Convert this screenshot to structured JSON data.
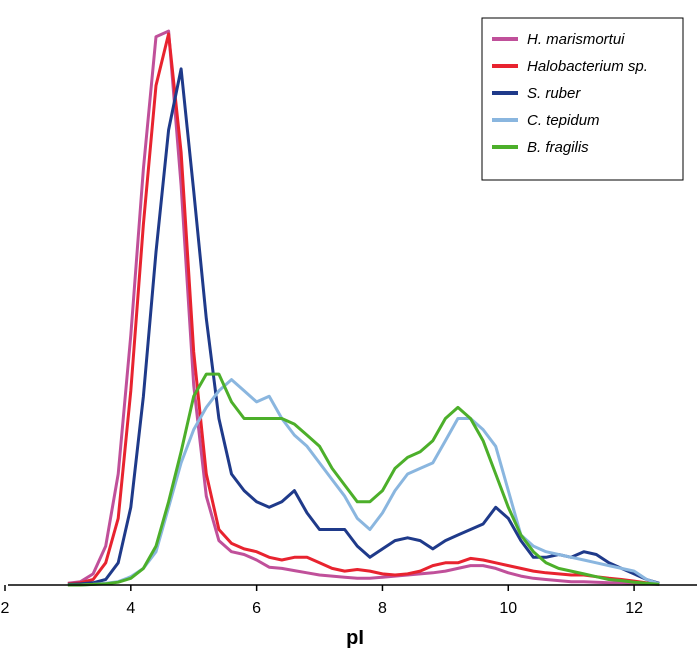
{
  "chart_data": {
    "type": "line",
    "title": "",
    "xlabel": "pI",
    "ylabel": "",
    "xlim": [
      2,
      13
    ],
    "ylim": [
      0,
      1.0
    ],
    "xticks": [
      2,
      4,
      6,
      8,
      10,
      12
    ],
    "legend_position": "top-right",
    "series": [
      {
        "name": "H. marismortui",
        "color": "#c0509a",
        "x": [
          3.0,
          3.2,
          3.4,
          3.6,
          3.8,
          4.0,
          4.2,
          4.4,
          4.6,
          4.8,
          5.0,
          5.2,
          5.4,
          5.6,
          5.8,
          6.0,
          6.2,
          6.4,
          6.6,
          6.8,
          7.0,
          7.2,
          7.4,
          7.6,
          7.8,
          8.0,
          8.2,
          8.4,
          8.6,
          8.8,
          9.0,
          9.2,
          9.4,
          9.6,
          9.8,
          10.0,
          10.2,
          10.4,
          10.6,
          10.8,
          11.0,
          11.2,
          11.4,
          11.6,
          11.8,
          12.0,
          12.2,
          12.4
        ],
        "values": [
          0.003,
          0.006,
          0.02,
          0.07,
          0.2,
          0.45,
          0.75,
          0.988,
          0.998,
          0.72,
          0.36,
          0.16,
          0.08,
          0.06,
          0.055,
          0.045,
          0.032,
          0.03,
          0.026,
          0.022,
          0.018,
          0.016,
          0.014,
          0.012,
          0.012,
          0.014,
          0.016,
          0.018,
          0.02,
          0.022,
          0.025,
          0.03,
          0.035,
          0.035,
          0.03,
          0.022,
          0.016,
          0.012,
          0.01,
          0.008,
          0.006,
          0.006,
          0.005,
          0.004,
          0.004,
          0.003,
          0.002,
          0.001
        ]
      },
      {
        "name": "Halobacterium sp.",
        "color": "#e8232f",
        "x": [
          3.0,
          3.2,
          3.4,
          3.6,
          3.8,
          4.0,
          4.2,
          4.4,
          4.6,
          4.8,
          5.0,
          5.2,
          5.4,
          5.6,
          5.8,
          6.0,
          6.2,
          6.4,
          6.6,
          6.8,
          7.0,
          7.2,
          7.4,
          7.6,
          7.8,
          8.0,
          8.2,
          8.4,
          8.6,
          8.8,
          9.0,
          9.2,
          9.4,
          9.6,
          9.8,
          10.0,
          10.2,
          10.4,
          10.6,
          10.8,
          11.0,
          11.2,
          11.4,
          11.6,
          11.8,
          12.0,
          12.2,
          12.4
        ],
        "values": [
          0.002,
          0.004,
          0.01,
          0.04,
          0.12,
          0.35,
          0.65,
          0.9,
          0.993,
          0.78,
          0.42,
          0.2,
          0.1,
          0.075,
          0.065,
          0.06,
          0.05,
          0.045,
          0.05,
          0.05,
          0.04,
          0.03,
          0.025,
          0.028,
          0.025,
          0.02,
          0.018,
          0.02,
          0.025,
          0.035,
          0.04,
          0.04,
          0.048,
          0.045,
          0.04,
          0.035,
          0.03,
          0.025,
          0.022,
          0.02,
          0.018,
          0.018,
          0.015,
          0.012,
          0.01,
          0.007,
          0.004,
          0.002
        ]
      },
      {
        "name": "S. ruber",
        "color": "#1f3a8a",
        "x": [
          3.0,
          3.2,
          3.4,
          3.6,
          3.8,
          4.0,
          4.2,
          4.4,
          4.6,
          4.8,
          5.0,
          5.2,
          5.4,
          5.6,
          5.8,
          6.0,
          6.2,
          6.4,
          6.6,
          6.8,
          7.0,
          7.2,
          7.4,
          7.6,
          7.8,
          8.0,
          8.2,
          8.4,
          8.6,
          8.8,
          9.0,
          9.2,
          9.4,
          9.6,
          9.8,
          10.0,
          10.2,
          10.4,
          10.6,
          10.8,
          11.0,
          11.2,
          11.4,
          11.6,
          11.8,
          12.0,
          12.2,
          12.4
        ],
        "values": [
          0.001,
          0.002,
          0.004,
          0.01,
          0.04,
          0.14,
          0.34,
          0.6,
          0.82,
          0.93,
          0.71,
          0.48,
          0.3,
          0.2,
          0.17,
          0.15,
          0.14,
          0.15,
          0.17,
          0.13,
          0.1,
          0.1,
          0.1,
          0.07,
          0.05,
          0.065,
          0.08,
          0.085,
          0.08,
          0.065,
          0.08,
          0.09,
          0.1,
          0.11,
          0.14,
          0.12,
          0.08,
          0.05,
          0.05,
          0.055,
          0.05,
          0.06,
          0.055,
          0.04,
          0.03,
          0.02,
          0.01,
          0.003
        ]
      },
      {
        "name": "C. tepidum",
        "color": "#8ab6df",
        "x": [
          3.0,
          3.2,
          3.4,
          3.6,
          3.8,
          4.0,
          4.2,
          4.4,
          4.6,
          4.8,
          5.0,
          5.2,
          5.4,
          5.6,
          5.8,
          6.0,
          6.2,
          6.4,
          6.6,
          6.8,
          7.0,
          7.2,
          7.4,
          7.6,
          7.8,
          8.0,
          8.2,
          8.4,
          8.6,
          8.8,
          9.0,
          9.2,
          9.4,
          9.6,
          9.8,
          10.0,
          10.2,
          10.4,
          10.6,
          10.8,
          11.0,
          11.2,
          11.4,
          11.6,
          11.8,
          12.0,
          12.2,
          12.4
        ],
        "values": [
          0.0,
          0.0,
          0.001,
          0.003,
          0.006,
          0.015,
          0.03,
          0.06,
          0.14,
          0.22,
          0.28,
          0.32,
          0.35,
          0.37,
          0.35,
          0.33,
          0.34,
          0.3,
          0.27,
          0.25,
          0.22,
          0.19,
          0.16,
          0.12,
          0.1,
          0.13,
          0.17,
          0.2,
          0.21,
          0.22,
          0.26,
          0.3,
          0.3,
          0.28,
          0.25,
          0.17,
          0.09,
          0.07,
          0.06,
          0.055,
          0.05,
          0.045,
          0.04,
          0.035,
          0.03,
          0.025,
          0.01,
          0.002
        ]
      },
      {
        "name": "B. fragilis",
        "color": "#4caf2a",
        "x": [
          3.0,
          3.2,
          3.4,
          3.6,
          3.8,
          4.0,
          4.2,
          4.4,
          4.6,
          4.8,
          5.0,
          5.2,
          5.4,
          5.6,
          5.8,
          6.0,
          6.2,
          6.4,
          6.6,
          6.8,
          7.0,
          7.2,
          7.4,
          7.6,
          7.8,
          8.0,
          8.2,
          8.4,
          8.6,
          8.8,
          9.0,
          9.2,
          9.4,
          9.6,
          9.8,
          10.0,
          10.2,
          10.4,
          10.6,
          10.8,
          11.0,
          11.2,
          11.4,
          11.6,
          11.8,
          12.0,
          12.2,
          12.4
        ],
        "values": [
          0.0,
          0.0,
          0.001,
          0.002,
          0.005,
          0.012,
          0.03,
          0.07,
          0.15,
          0.24,
          0.34,
          0.38,
          0.38,
          0.33,
          0.3,
          0.3,
          0.3,
          0.3,
          0.29,
          0.27,
          0.25,
          0.21,
          0.18,
          0.15,
          0.15,
          0.17,
          0.21,
          0.23,
          0.24,
          0.26,
          0.3,
          0.32,
          0.3,
          0.26,
          0.2,
          0.14,
          0.09,
          0.06,
          0.04,
          0.03,
          0.025,
          0.02,
          0.015,
          0.01,
          0.008,
          0.005,
          0.003,
          0.001
        ]
      }
    ]
  }
}
